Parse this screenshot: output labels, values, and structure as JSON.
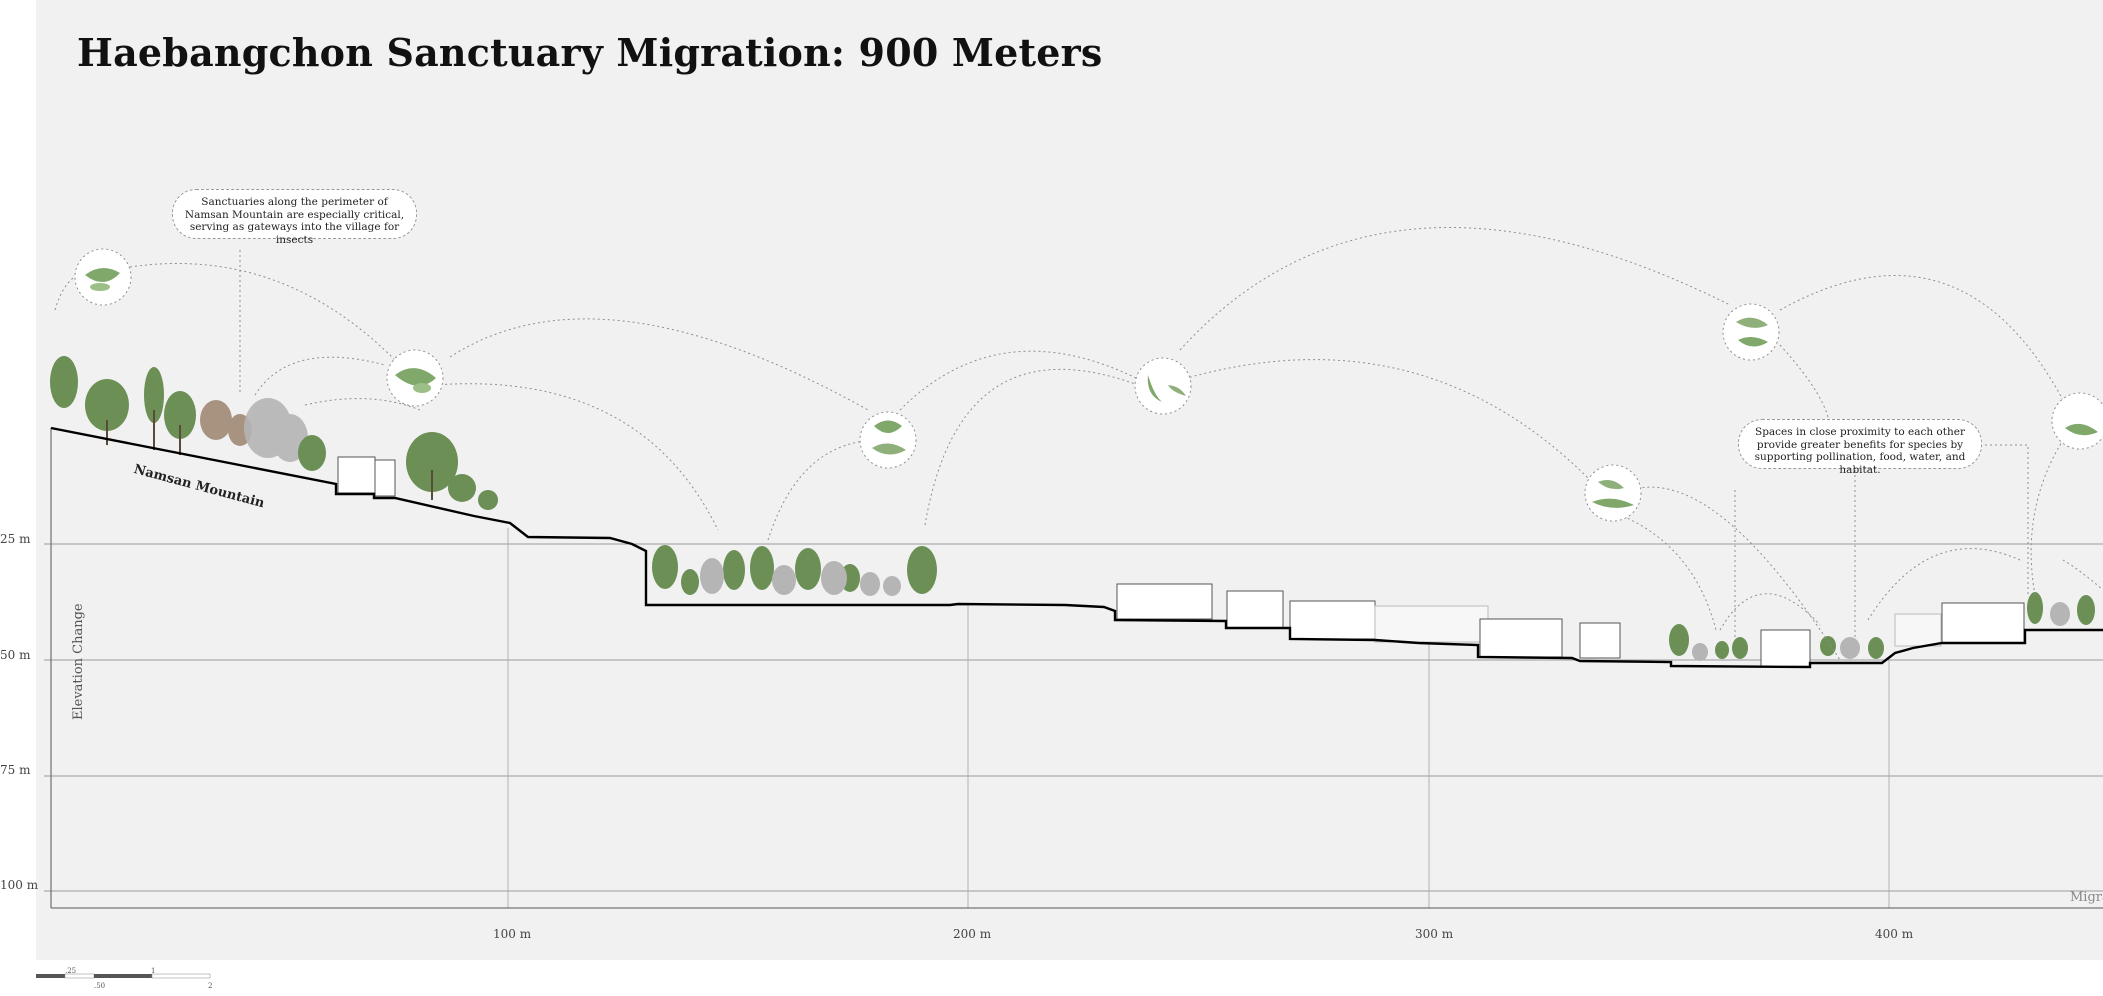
{
  "title": "Haebangchon Sanctuary Migration: 900 Meters",
  "y_axis": {
    "label": "Elevation Change",
    "ticks": [
      "25 m",
      "50 m",
      "75 m",
      "100 m"
    ]
  },
  "x_axis": {
    "ticks": [
      "100 m",
      "200 m",
      "300 m",
      "400 m"
    ],
    "end_label": "Migra"
  },
  "landmark_label": "Namsan Mountain",
  "callouts": [
    {
      "text": "Sanctuaries along the perimeter of Namsan Mountain are especially critical, serving as gateways into the village for insects"
    },
    {
      "text": "Spaces in close proximity to each other provide greater benefits for species by supporting pollination, food, water, and habitat."
    }
  ],
  "scale_bar": {
    "labels": [
      ".25",
      ".50",
      "1",
      "2"
    ]
  },
  "colors": {
    "background": "#f1f1f1",
    "terrain_line": "#000000",
    "gridline": "#9a9a9a",
    "foliage_green": "#5f8a4c",
    "foliage_grey": "#a8a8a8",
    "insect_green": "#7fa86a"
  },
  "icons": {
    "species_bubble": "insect-icon",
    "tree": "tree-icon",
    "building": "building-icon"
  }
}
